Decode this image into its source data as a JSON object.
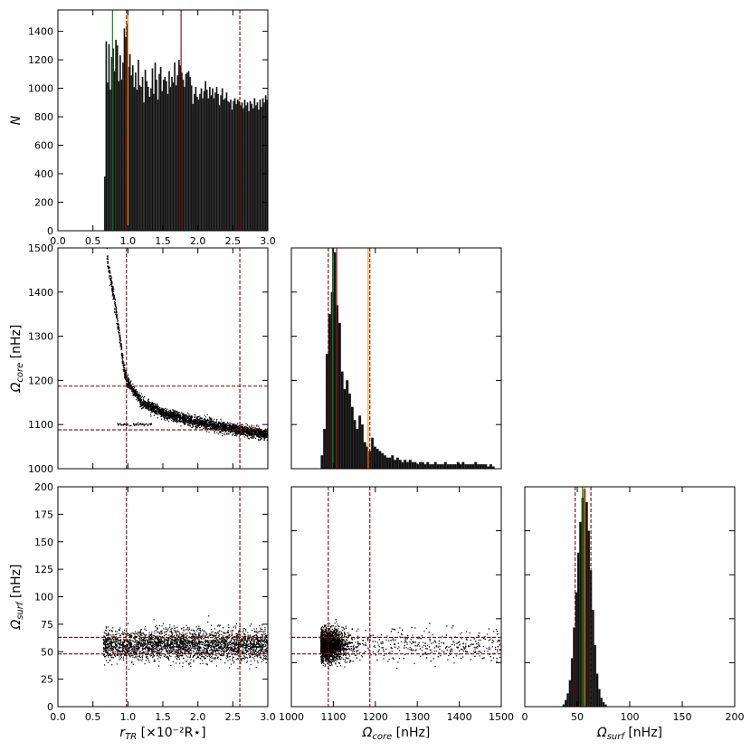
{
  "chart_data": [
    {
      "panel": "hist_r_tr",
      "type": "bar",
      "xlim": [
        0.0,
        3.0
      ],
      "ylim": [
        0,
        1550
      ],
      "xticks": [
        0.0,
        0.5,
        1.0,
        1.5,
        2.0,
        2.5,
        3.0
      ],
      "yticks": [
        0,
        200,
        400,
        600,
        800,
        1000,
        1200,
        1400
      ],
      "ylabel": "N",
      "bins": [
        [
          0.66,
          380
        ],
        [
          0.68,
          1330
        ],
        [
          0.7,
          1040
        ],
        [
          0.72,
          1310
        ],
        [
          0.74,
          990
        ],
        [
          0.76,
          1220
        ],
        [
          0.78,
          1280
        ],
        [
          0.8,
          1120
        ],
        [
          0.82,
          1340
        ],
        [
          0.84,
          1300
        ],
        [
          0.86,
          1050
        ],
        [
          0.88,
          1230
        ],
        [
          0.9,
          1060
        ],
        [
          0.92,
          1180
        ],
        [
          0.94,
          1420
        ],
        [
          0.96,
          1360
        ],
        [
          0.98,
          1450
        ],
        [
          1.0,
          1150
        ],
        [
          1.02,
          1240
        ],
        [
          1.04,
          1090
        ],
        [
          1.06,
          1160
        ],
        [
          1.08,
          1010
        ],
        [
          1.1,
          1110
        ],
        [
          1.12,
          990
        ],
        [
          1.14,
          1200
        ],
        [
          1.16,
          1020
        ],
        [
          1.18,
          1010
        ],
        [
          1.2,
          1080
        ],
        [
          1.22,
          900
        ],
        [
          1.24,
          1130
        ],
        [
          1.26,
          1050
        ],
        [
          1.28,
          1010
        ],
        [
          1.3,
          940
        ],
        [
          1.32,
          1000
        ],
        [
          1.34,
          1140
        ],
        [
          1.36,
          960
        ],
        [
          1.38,
          1180
        ],
        [
          1.4,
          1060
        ],
        [
          1.42,
          920
        ],
        [
          1.44,
          1100
        ],
        [
          1.46,
          1150
        ],
        [
          1.48,
          980
        ],
        [
          1.5,
          1060
        ],
        [
          1.52,
          1080
        ],
        [
          1.54,
          1050
        ],
        [
          1.56,
          960
        ],
        [
          1.58,
          1120
        ],
        [
          1.6,
          1010
        ],
        [
          1.62,
          1080
        ],
        [
          1.64,
          1040
        ],
        [
          1.66,
          1180
        ],
        [
          1.68,
          1020
        ],
        [
          1.7,
          1090
        ],
        [
          1.72,
          1200
        ],
        [
          1.74,
          1160
        ],
        [
          1.76,
          1110
        ],
        [
          1.78,
          1060
        ],
        [
          1.8,
          1010
        ],
        [
          1.82,
          1100
        ],
        [
          1.84,
          1110
        ],
        [
          1.86,
          1120
        ],
        [
          1.88,
          1080
        ],
        [
          1.9,
          1020
        ],
        [
          1.92,
          890
        ],
        [
          1.94,
          960
        ],
        [
          1.96,
          1010
        ],
        [
          1.98,
          940
        ],
        [
          2.0,
          920
        ],
        [
          2.02,
          960
        ],
        [
          2.04,
          1000
        ],
        [
          2.06,
          930
        ],
        [
          2.08,
          980
        ],
        [
          2.1,
          1050
        ],
        [
          2.12,
          990
        ],
        [
          2.14,
          930
        ],
        [
          2.16,
          1010
        ],
        [
          2.18,
          950
        ],
        [
          2.2,
          1000
        ],
        [
          2.22,
          930
        ],
        [
          2.24,
          970
        ],
        [
          2.26,
          1010
        ],
        [
          2.28,
          960
        ],
        [
          2.3,
          880
        ],
        [
          2.32,
          950
        ],
        [
          2.34,
          1000
        ],
        [
          2.36,
          920
        ],
        [
          2.38,
          930
        ],
        [
          2.4,
          970
        ],
        [
          2.42,
          910
        ],
        [
          2.44,
          900
        ],
        [
          2.46,
          920
        ],
        [
          2.48,
          850
        ],
        [
          2.5,
          910
        ],
        [
          2.52,
          930
        ],
        [
          2.54,
          890
        ],
        [
          2.56,
          920
        ],
        [
          2.58,
          910
        ],
        [
          2.6,
          880
        ],
        [
          2.62,
          900
        ],
        [
          2.64,
          860
        ],
        [
          2.66,
          920
        ],
        [
          2.68,
          880
        ],
        [
          2.7,
          900
        ],
        [
          2.72,
          840
        ],
        [
          2.74,
          910
        ],
        [
          2.76,
          890
        ],
        [
          2.78,
          860
        ],
        [
          2.8,
          930
        ],
        [
          2.82,
          880
        ],
        [
          2.84,
          900
        ],
        [
          2.86,
          850
        ],
        [
          2.88,
          920
        ],
        [
          2.9,
          870
        ],
        [
          2.92,
          930
        ],
        [
          2.94,
          900
        ],
        [
          2.96,
          950
        ],
        [
          2.98,
          920
        ]
      ],
      "bin_width": 0.02,
      "vlines": [
        {
          "x": 0.78,
          "color": "#008000",
          "style": "solid"
        },
        {
          "x": 1.0,
          "color": "#ff8c00",
          "style": "solid"
        },
        {
          "x": 1.76,
          "color": "#8b0000",
          "style": "solid"
        },
        {
          "x": 0.98,
          "color": "#8b0000",
          "style": "dashed"
        },
        {
          "x": 2.6,
          "color": "#8b0000",
          "style": "dashed"
        }
      ]
    },
    {
      "panel": "scatter_r_tr_omega_core",
      "type": "scatter",
      "xlim": [
        0.0,
        3.0
      ],
      "ylim": [
        1000,
        1500
      ],
      "yticks": [
        1000,
        1100,
        1200,
        1300,
        1400,
        1500
      ],
      "ylabel": "Ω_core [nHz]",
      "trend": [
        [
          0.7,
          1480
        ],
        [
          0.8,
          1390
        ],
        [
          0.9,
          1280
        ],
        [
          0.95,
          1220
        ],
        [
          1.0,
          1195
        ],
        [
          1.2,
          1150
        ],
        [
          1.5,
          1125
        ],
        [
          2.0,
          1105
        ],
        [
          2.5,
          1090
        ],
        [
          3.0,
          1077
        ]
      ],
      "outlier_cluster": {
        "x_range": [
          0.85,
          1.35
        ],
        "y": 1100
      },
      "point_count": 3000,
      "vlines": [
        {
          "x": 0.98,
          "color": "#8b0000",
          "style": "dashed"
        },
        {
          "x": 2.6,
          "color": "#8b0000",
          "style": "dashed"
        }
      ],
      "hlines": [
        {
          "y": 1088,
          "color": "#8b0000",
          "style": "dashed"
        },
        {
          "y": 1187,
          "color": "#8b0000",
          "style": "dashed"
        }
      ]
    },
    {
      "panel": "hist_omega_core",
      "type": "bar",
      "xlim": [
        1000,
        1500
      ],
      "ylim": [
        0,
        1
      ],
      "bins": [
        [
          1070,
          0.06
        ],
        [
          1076,
          0.18
        ],
        [
          1082,
          0.52
        ],
        [
          1088,
          0.7
        ],
        [
          1094,
          0.8
        ],
        [
          1100,
          0.98
        ],
        [
          1106,
          0.74
        ],
        [
          1112,
          0.66
        ],
        [
          1118,
          0.44
        ],
        [
          1124,
          0.36
        ],
        [
          1130,
          0.4
        ],
        [
          1136,
          0.34
        ],
        [
          1142,
          0.28
        ],
        [
          1148,
          0.22
        ],
        [
          1154,
          0.18
        ],
        [
          1160,
          0.24
        ],
        [
          1166,
          0.2
        ],
        [
          1172,
          0.12
        ],
        [
          1178,
          0.1
        ],
        [
          1184,
          0.08
        ],
        [
          1190,
          0.14
        ],
        [
          1196,
          0.1
        ],
        [
          1202,
          0.09
        ],
        [
          1208,
          0.08
        ],
        [
          1214,
          0.07
        ],
        [
          1220,
          0.06
        ],
        [
          1226,
          0.05
        ],
        [
          1232,
          0.05
        ],
        [
          1238,
          0.06
        ],
        [
          1244,
          0.04
        ],
        [
          1250,
          0.05
        ],
        [
          1256,
          0.04
        ],
        [
          1262,
          0.03
        ],
        [
          1268,
          0.04
        ],
        [
          1274,
          0.03
        ],
        [
          1280,
          0.04
        ],
        [
          1286,
          0.03
        ],
        [
          1292,
          0.03
        ],
        [
          1298,
          0.02
        ],
        [
          1304,
          0.03
        ],
        [
          1310,
          0.03
        ],
        [
          1316,
          0.02
        ],
        [
          1322,
          0.03
        ],
        [
          1328,
          0.02
        ],
        [
          1334,
          0.02
        ],
        [
          1340,
          0.03
        ],
        [
          1346,
          0.02
        ],
        [
          1352,
          0.02
        ],
        [
          1358,
          0.02
        ],
        [
          1364,
          0.03
        ],
        [
          1370,
          0.02
        ],
        [
          1376,
          0.02
        ],
        [
          1382,
          0.02
        ],
        [
          1388,
          0.02
        ],
        [
          1394,
          0.03
        ],
        [
          1400,
          0.02
        ],
        [
          1406,
          0.03
        ],
        [
          1412,
          0.02
        ],
        [
          1418,
          0.02
        ],
        [
          1424,
          0.02
        ],
        [
          1430,
          0.02
        ],
        [
          1436,
          0.03
        ],
        [
          1442,
          0.02
        ],
        [
          1448,
          0.02
        ],
        [
          1454,
          0.02
        ],
        [
          1460,
          0.02
        ],
        [
          1466,
          0.01
        ],
        [
          1472,
          0.02
        ],
        [
          1478,
          0.01
        ]
      ],
      "bin_width": 6,
      "vlines": [
        {
          "x": 1098,
          "color": "#008000",
          "style": "solid"
        },
        {
          "x": 1108,
          "color": "#8b0000",
          "style": "solid"
        },
        {
          "x": 1183,
          "color": "#ff8c00",
          "style": "solid"
        },
        {
          "x": 1088,
          "color": "#8b0000",
          "style": "dashed"
        },
        {
          "x": 1187,
          "color": "#8b0000",
          "style": "dashed"
        }
      ]
    },
    {
      "panel": "scatter_r_tr_omega_surf",
      "type": "scatter",
      "xlim": [
        0.0,
        3.0
      ],
      "ylim": [
        0,
        200
      ],
      "xticks": [
        0.0,
        0.5,
        1.0,
        1.5,
        2.0,
        2.5,
        3.0
      ],
      "yticks": [
        0,
        25,
        50,
        75,
        100,
        125,
        150,
        175,
        200
      ],
      "xlabel": "r_TR [×10⁻²R⋆]",
      "ylabel": "Ω_surf [nHz]",
      "x_range": [
        0.65,
        3.0
      ],
      "y_mean": 56,
      "y_sd": 7,
      "point_count": 3000,
      "vlines": [
        {
          "x": 0.98,
          "color": "#8b0000",
          "style": "dashed"
        },
        {
          "x": 2.6,
          "color": "#8b0000",
          "style": "dashed"
        }
      ],
      "hlines": [
        {
          "y": 48,
          "color": "#8b0000",
          "style": "dashed"
        },
        {
          "y": 63,
          "color": "#8b0000",
          "style": "dashed"
        }
      ]
    },
    {
      "panel": "scatter_omega_core_omega_surf",
      "type": "scatter",
      "xlim": [
        1000,
        1500
      ],
      "ylim": [
        0,
        200
      ],
      "xticks": [
        1000,
        1100,
        1200,
        1300,
        1400,
        1500
      ],
      "xlabel": "Ω_core [nHz]",
      "x_concentration": [
        1070,
        1180
      ],
      "y_mean": 56,
      "y_sd": 7,
      "point_count": 3000,
      "vlines": [
        {
          "x": 1088,
          "color": "#8b0000",
          "style": "dashed"
        },
        {
          "x": 1187,
          "color": "#8b0000",
          "style": "dashed"
        }
      ],
      "hlines": [
        {
          "y": 48,
          "color": "#8b0000",
          "style": "dashed"
        },
        {
          "y": 63,
          "color": "#8b0000",
          "style": "dashed"
        }
      ]
    },
    {
      "panel": "hist_omega_surf",
      "type": "bar",
      "xlim": [
        0,
        200
      ],
      "ylim": [
        0,
        1
      ],
      "xticks": [
        0,
        50,
        100,
        150,
        200
      ],
      "xlabel": "Ω_surf [nHz]",
      "bins": [
        [
          36,
          0.01
        ],
        [
          38,
          0.03
        ],
        [
          40,
          0.06
        ],
        [
          42,
          0.12
        ],
        [
          44,
          0.22
        ],
        [
          46,
          0.36
        ],
        [
          48,
          0.52
        ],
        [
          50,
          0.7
        ],
        [
          52,
          0.84
        ],
        [
          54,
          0.95
        ],
        [
          56,
          0.99
        ],
        [
          58,
          0.93
        ],
        [
          60,
          0.8
        ],
        [
          62,
          0.62
        ],
        [
          64,
          0.44
        ],
        [
          66,
          0.28
        ],
        [
          68,
          0.15
        ],
        [
          70,
          0.08
        ],
        [
          72,
          0.04
        ],
        [
          74,
          0.02
        ],
        [
          76,
          0.01
        ]
      ],
      "bin_width": 2,
      "vlines": [
        {
          "x": 55,
          "color": "#008000",
          "style": "solid"
        },
        {
          "x": 57,
          "color": "#ff8c00",
          "style": "solid"
        },
        {
          "x": 48,
          "color": "#8b0000",
          "style": "dashed"
        },
        {
          "x": 63,
          "color": "#8b0000",
          "style": "dashed"
        }
      ]
    }
  ]
}
